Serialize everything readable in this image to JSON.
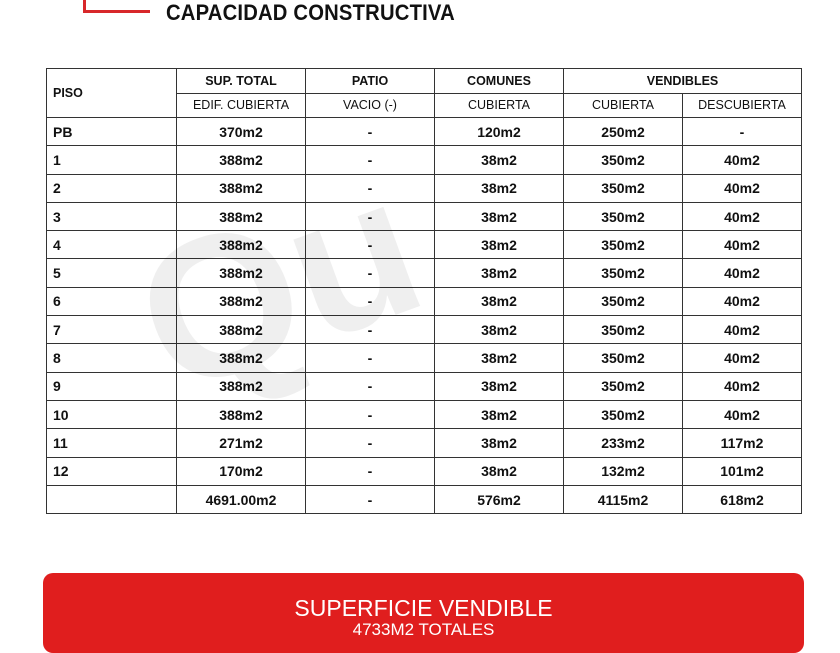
{
  "title": "CAPACIDAD CONSTRUCTIVA",
  "watermark": "Quimat",
  "table": {
    "header_top": [
      "PISO",
      "SUP. TOTAL",
      "PATIO",
      "COMUNES",
      "VENDIBLES"
    ],
    "header_sub": [
      "EDIF. CUBIERTA",
      "VACIO (-)",
      "CUBIERTA",
      "CUBIERTA",
      "DESCUBIERTA"
    ],
    "rows": [
      [
        "PB",
        "370m2",
        "-",
        "120m2",
        "250m2",
        "-"
      ],
      [
        "1",
        "388m2",
        "-",
        "38m2",
        "350m2",
        "40m2"
      ],
      [
        "2",
        "388m2",
        "-",
        "38m2",
        "350m2",
        "40m2"
      ],
      [
        "3",
        "388m2",
        "-",
        "38m2",
        "350m2",
        "40m2"
      ],
      [
        "4",
        "388m2",
        "-",
        "38m2",
        "350m2",
        "40m2"
      ],
      [
        "5",
        "388m2",
        "-",
        "38m2",
        "350m2",
        "40m2"
      ],
      [
        "6",
        "388m2",
        "-",
        "38m2",
        "350m2",
        "40m2"
      ],
      [
        "7",
        "388m2",
        "-",
        "38m2",
        "350m2",
        "40m2"
      ],
      [
        "8",
        "388m2",
        "-",
        "38m2",
        "350m2",
        "40m2"
      ],
      [
        "9",
        "388m2",
        "-",
        "38m2",
        "350m2",
        "40m2"
      ],
      [
        "10",
        "388m2",
        "-",
        "38m2",
        "350m2",
        "40m2"
      ],
      [
        "11",
        "271m2",
        "-",
        "38m2",
        "233m2",
        "117m2"
      ],
      [
        "12",
        "170m2",
        "-",
        "38m2",
        "132m2",
        "101m2"
      ],
      [
        "",
        "4691.00m2",
        "-",
        "576m2",
        "4115m2",
        "618m2"
      ]
    ]
  },
  "banner": {
    "title": "SUPERFICIE VENDIBLE",
    "subtitle": "4733M2 TOTALES"
  },
  "colors": {
    "accent": "#e01e1e"
  }
}
